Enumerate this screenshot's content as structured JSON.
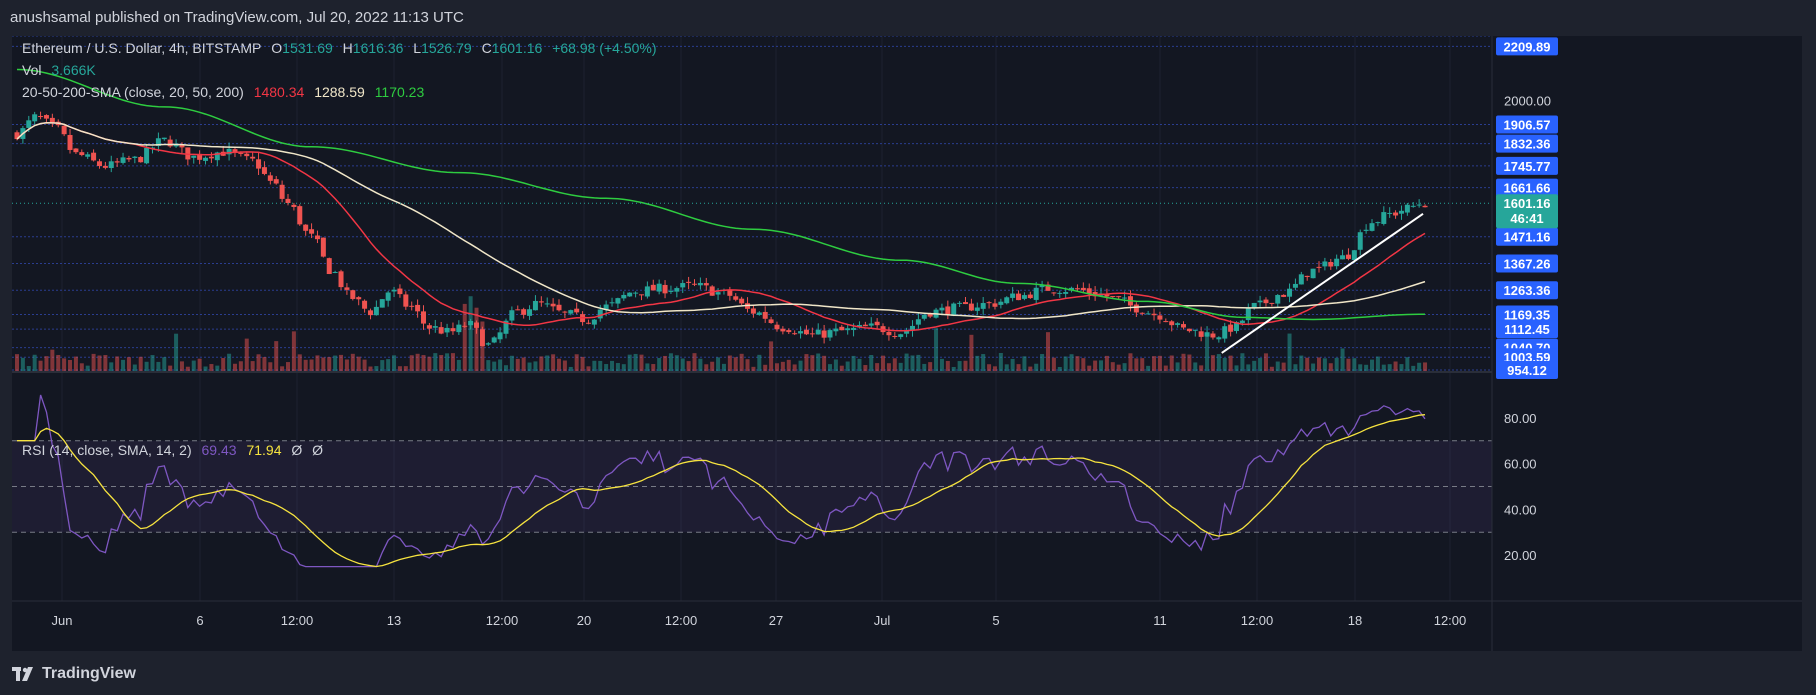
{
  "header": {
    "published": "anushsamal published on TradingView.com, Jul 20, 2022 11:13 UTC"
  },
  "colors": {
    "bg": "#131722",
    "up": "#26a69a",
    "down": "#ef5350",
    "sma20": "#f23645",
    "sma50": "#f0e6c8",
    "sma200": "#2ecc40",
    "rsi": "#7e57c2",
    "rsima": "#f6e33f",
    "trend": "#ffffff",
    "axisBox": "#2962ff"
  },
  "legend": {
    "symbol": "Ethereum / U.S. Dollar, 4h, BITSTAMP",
    "o_label": "O",
    "o": "1531.69",
    "h_label": "H",
    "h": "1616.36",
    "l_label": "L",
    "l": "1526.79",
    "c_label": "C",
    "c": "1601.16",
    "change": "+68.98 (+4.50%)",
    "vol_label": "Vol",
    "vol": "3.666K",
    "sma_label": "20-50-200-SMA (close, 20, 50, 200)",
    "sma20": "1480.34",
    "sma50": "1288.59",
    "sma200": "1170.23",
    "rsi_label": "RSI (14, close, SMA, 14, 2)",
    "rsi": "69.43",
    "rsima": "71.94",
    "z1": "Ø",
    "z2": "Ø"
  },
  "price_axis": {
    "currency": "USD",
    "ticks": [
      "2000.00"
    ],
    "boxes": [
      "2209.89",
      "1906.57",
      "1832.36",
      "1745.77",
      "1661.66",
      "1471.16",
      "1367.26",
      "1263.36",
      "1169.35",
      "1112.45",
      "1040.70",
      "1003.59",
      "954.12"
    ],
    "current_price": "1601.16",
    "countdown": "46:41"
  },
  "rsi_axis": {
    "ticks": [
      "80.00",
      "60.00",
      "40.00",
      "20.00"
    ]
  },
  "time_axis": [
    "Jun",
    "6",
    "12:00",
    "13",
    "12:00",
    "20",
    "12:00",
    "27",
    "Jul",
    "5",
    "11",
    "12:00",
    "18",
    "12:00"
  ],
  "footer": {
    "brand": "TradingView"
  },
  "chart_data": {
    "type": "candlestick",
    "symbol": "Ethereum / U.S. Dollar",
    "interval": "4h",
    "ylim": [
      950,
      2250
    ],
    "rsi_ylim": [
      0,
      100
    ],
    "rsi_bands": [
      30,
      50,
      70
    ],
    "horizontal_levels": [
      2209.89,
      1906.57,
      1832.36,
      1745.77,
      1661.66,
      1471.16,
      1367.26,
      1263.36,
      1169.35,
      1112.45,
      1040.7,
      1003.59,
      954.12
    ],
    "close_anchors": [
      [
        0,
        1870
      ],
      [
        20,
        1935
      ],
      [
        40,
        1890
      ],
      [
        60,
        1790
      ],
      [
        90,
        1745
      ],
      [
        120,
        1770
      ],
      [
        150,
        1845
      ],
      [
        180,
        1780
      ],
      [
        210,
        1800
      ],
      [
        240,
        1765
      ],
      [
        260,
        1680
      ],
      [
        275,
        1600
      ],
      [
        300,
        1470
      ],
      [
        320,
        1340
      ],
      [
        340,
        1235
      ],
      [
        360,
        1180
      ],
      [
        380,
        1260
      ],
      [
        400,
        1200
      ],
      [
        420,
        1120
      ],
      [
        440,
        1100
      ],
      [
        460,
        1130
      ],
      [
        480,
        1050
      ],
      [
        510,
        1180
      ],
      [
        530,
        1210
      ],
      [
        560,
        1170
      ],
      [
        580,
        1150
      ],
      [
        600,
        1200
      ],
      [
        630,
        1260
      ],
      [
        660,
        1270
      ],
      [
        690,
        1280
      ],
      [
        720,
        1250
      ],
      [
        750,
        1180
      ],
      [
        780,
        1120
      ],
      [
        810,
        1090
      ],
      [
        840,
        1105
      ],
      [
        870,
        1120
      ],
      [
        900,
        1100
      ],
      [
        930,
        1180
      ],
      [
        960,
        1195
      ],
      [
        990,
        1210
      ],
      [
        1020,
        1240
      ],
      [
        1050,
        1270
      ],
      [
        1080,
        1265
      ],
      [
        1100,
        1250
      ],
      [
        1120,
        1230
      ],
      [
        1140,
        1195
      ],
      [
        1160,
        1170
      ],
      [
        1190,
        1110
      ],
      [
        1220,
        1090
      ],
      [
        1240,
        1120
      ],
      [
        1260,
        1200
      ],
      [
        1290,
        1250
      ],
      [
        1320,
        1340
      ],
      [
        1350,
        1390
      ],
      [
        1380,
        1530
      ],
      [
        1400,
        1560
      ],
      [
        1415,
        1580
      ],
      [
        1430,
        1601
      ]
    ],
    "sma200_anchors": [
      [
        0,
        2120
      ],
      [
        150,
        1975
      ],
      [
        300,
        1820
      ],
      [
        450,
        1720
      ],
      [
        600,
        1620
      ],
      [
        750,
        1500
      ],
      [
        900,
        1380
      ],
      [
        1020,
        1290
      ],
      [
        1150,
        1220
      ],
      [
        1250,
        1158
      ],
      [
        1320,
        1150
      ],
      [
        1430,
        1170
      ]
    ],
    "trendline": [
      [
        1230,
        1020
      ],
      [
        1435,
        1560
      ]
    ]
  }
}
